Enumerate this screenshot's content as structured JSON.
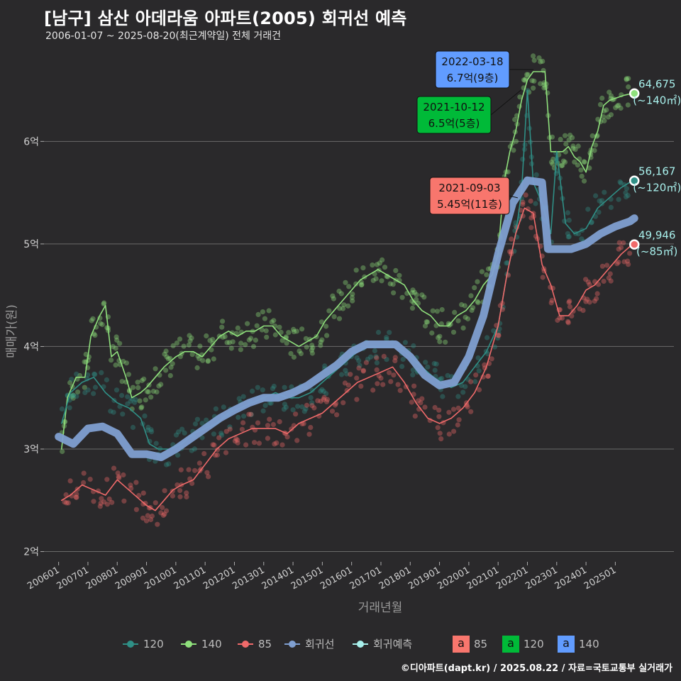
{
  "title": "[남구] 삼산 아데라움 아파트(2005) 회귀선 예측",
  "subtitle": "2006-01-07 ~ 2025-08-20(최근계약일) 전체 거래건",
  "caption": "©디아파트(dapt.kr) / 2025.08.22 / 자료=국토교통부 실거래가",
  "colors": {
    "background": "#2a292b",
    "grid": "#6a6a6a",
    "s120": "#2f8f86",
    "s140": "#8fe07c",
    "s85": "#f06a6a",
    "regression": "#7f9fd1",
    "forecast": "#a8f0ec",
    "box85": "#f8766d",
    "box120": "#00ba38",
    "box140": "#619cff"
  },
  "chart_data": {
    "type": "line",
    "xlabel": "거래년월",
    "ylabel": "매매가(원)",
    "x_ticks": [
      "200601",
      "200701",
      "200801",
      "200901",
      "201001",
      "201101",
      "201201",
      "201301",
      "201401",
      "201501",
      "201601",
      "201701",
      "201801",
      "201901",
      "202001",
      "202101",
      "202201",
      "202301",
      "202401",
      "202501"
    ],
    "y_ticks": [
      {
        "value": 2,
        "label": "2억"
      },
      {
        "value": 3,
        "label": "3억"
      },
      {
        "value": 4,
        "label": "4억"
      },
      {
        "value": 5,
        "label": "5억"
      },
      {
        "value": 6,
        "label": "6억"
      }
    ],
    "x_range": [
      2005.5,
      2027.0
    ],
    "y_range": [
      1.9,
      6.95
    ],
    "unit": "억",
    "series": [
      {
        "name": "140",
        "color_key": "s140",
        "x": [
          2006.1,
          2006.3,
          2006.6,
          2006.9,
          2007.1,
          2007.4,
          2007.6,
          2007.8,
          2008.0,
          2008.3,
          2008.5,
          2008.8,
          2009.0,
          2009.3,
          2009.6,
          2009.8,
          2010.0,
          2010.3,
          2010.6,
          2010.9,
          2011.2,
          2011.5,
          2011.8,
          2012.1,
          2012.4,
          2012.7,
          2013.0,
          2013.3,
          2013.6,
          2013.9,
          2014.2,
          2014.5,
          2014.8,
          2015.1,
          2015.4,
          2015.7,
          2016.0,
          2016.3,
          2016.6,
          2016.9,
          2017.2,
          2017.5,
          2017.8,
          2018.1,
          2018.4,
          2018.7,
          2019.0,
          2019.3,
          2019.6,
          2019.9,
          2020.2,
          2020.5,
          2020.8,
          2021.0,
          2021.2,
          2021.4,
          2021.6,
          2021.8,
          2022.0,
          2022.2,
          2022.5,
          2022.6,
          2022.8,
          2023.0,
          2023.2,
          2023.4,
          2023.6,
          2023.8,
          2024.0,
          2024.2,
          2024.4,
          2024.6,
          2024.8,
          2025.0,
          2025.3,
          2025.6
        ],
        "y": [
          3.0,
          3.5,
          3.7,
          3.7,
          4.1,
          4.3,
          4.4,
          3.9,
          3.95,
          3.7,
          3.5,
          3.55,
          3.6,
          3.7,
          3.8,
          3.85,
          3.9,
          3.95,
          3.95,
          3.9,
          4.0,
          4.1,
          4.15,
          4.1,
          4.15,
          4.15,
          4.2,
          4.2,
          4.1,
          4.05,
          4.0,
          4.05,
          4.1,
          4.25,
          4.35,
          4.45,
          4.55,
          4.65,
          4.7,
          4.75,
          4.7,
          4.65,
          4.6,
          4.45,
          4.35,
          4.3,
          4.2,
          4.2,
          4.3,
          4.35,
          4.45,
          4.6,
          4.7,
          4.9,
          5.6,
          5.9,
          6.1,
          6.4,
          6.6,
          6.68,
          6.68,
          6.68,
          5.9,
          5.9,
          5.9,
          5.95,
          5.85,
          5.8,
          5.7,
          5.95,
          6.1,
          6.35,
          6.4,
          6.42,
          6.45,
          6.47
        ]
      },
      {
        "name": "120",
        "color_key": "s120",
        "x": [
          2006.1,
          2006.4,
          2006.8,
          2007.2,
          2007.6,
          2008.0,
          2008.4,
          2008.8,
          2009.1,
          2009.4,
          2009.8,
          2010.2,
          2010.6,
          2011.0,
          2011.4,
          2011.8,
          2012.2,
          2012.6,
          2013.0,
          2013.4,
          2013.8,
          2014.2,
          2014.6,
          2015.0,
          2015.4,
          2015.8,
          2016.2,
          2016.6,
          2017.0,
          2017.4,
          2017.8,
          2018.2,
          2018.6,
          2019.0,
          2019.4,
          2019.8,
          2020.2,
          2020.6,
          2021.0,
          2021.3,
          2021.6,
          2021.8,
          2022.0,
          2022.2,
          2022.5,
          2022.8,
          2023.0,
          2023.3,
          2023.6,
          2024.0,
          2024.4,
          2024.8,
          2025.2,
          2025.6
        ],
        "y": [
          3.25,
          3.55,
          3.65,
          3.7,
          3.55,
          3.45,
          3.4,
          3.3,
          3.05,
          3.0,
          3.0,
          3.05,
          3.15,
          3.2,
          3.25,
          3.35,
          3.4,
          3.45,
          3.5,
          3.55,
          3.5,
          3.5,
          3.55,
          3.65,
          3.75,
          3.85,
          3.95,
          4.0,
          4.0,
          4.0,
          3.95,
          3.85,
          3.75,
          3.65,
          3.6,
          3.65,
          3.8,
          3.95,
          4.2,
          4.7,
          5.1,
          5.5,
          6.5,
          5.6,
          5.4,
          5.1,
          5.9,
          5.2,
          5.1,
          5.15,
          5.35,
          5.45,
          5.55,
          5.62
        ]
      },
      {
        "name": "85",
        "color_key": "s85",
        "x": [
          2006.1,
          2006.4,
          2006.8,
          2007.2,
          2007.6,
          2008.0,
          2008.4,
          2008.8,
          2009.0,
          2009.3,
          2009.6,
          2009.9,
          2010.2,
          2010.6,
          2011.0,
          2011.4,
          2011.8,
          2012.2,
          2012.6,
          2013.0,
          2013.4,
          2013.8,
          2014.2,
          2014.6,
          2015.0,
          2015.4,
          2015.8,
          2016.2,
          2016.6,
          2017.0,
          2017.4,
          2017.8,
          2018.2,
          2018.6,
          2019.0,
          2019.4,
          2019.8,
          2020.2,
          2020.6,
          2021.0,
          2021.3,
          2021.6,
          2021.9,
          2022.2,
          2022.5,
          2022.8,
          2023.1,
          2023.4,
          2023.7,
          2024.0,
          2024.3,
          2024.6,
          2024.9,
          2025.2,
          2025.6
        ],
        "y": [
          2.5,
          2.55,
          2.65,
          2.6,
          2.55,
          2.7,
          2.6,
          2.5,
          2.45,
          2.4,
          2.5,
          2.6,
          2.65,
          2.7,
          2.85,
          3.0,
          3.1,
          3.15,
          3.2,
          3.2,
          3.2,
          3.15,
          3.25,
          3.3,
          3.35,
          3.45,
          3.55,
          3.65,
          3.7,
          3.75,
          3.8,
          3.65,
          3.45,
          3.3,
          3.25,
          3.3,
          3.4,
          3.55,
          3.8,
          4.2,
          4.7,
          5.1,
          5.35,
          5.3,
          4.8,
          4.6,
          4.3,
          4.3,
          4.4,
          4.55,
          4.6,
          4.7,
          4.8,
          4.9,
          5.0
        ]
      },
      {
        "name": "회귀선",
        "color_key": "regression",
        "x": [
          2006.0,
          2006.5,
          2007.0,
          2007.5,
          2008.0,
          2008.5,
          2009.0,
          2009.5,
          2010.0,
          2010.5,
          2011.0,
          2011.5,
          2012.0,
          2012.5,
          2013.0,
          2013.5,
          2014.0,
          2014.5,
          2015.0,
          2015.5,
          2016.0,
          2016.5,
          2017.0,
          2017.5,
          2018.0,
          2018.5,
          2019.0,
          2019.5,
          2020.0,
          2020.5,
          2021.0,
          2021.5,
          2022.0,
          2022.5,
          2022.7,
          2023.0,
          2023.5,
          2024.0,
          2024.5,
          2025.0,
          2025.5,
          2025.65
        ],
        "y": [
          3.12,
          3.05,
          3.2,
          3.22,
          3.15,
          2.95,
          2.95,
          2.92,
          3.0,
          3.1,
          3.2,
          3.3,
          3.38,
          3.45,
          3.5,
          3.5,
          3.55,
          3.62,
          3.72,
          3.82,
          3.95,
          4.02,
          4.02,
          4.02,
          3.9,
          3.72,
          3.62,
          3.65,
          3.9,
          4.3,
          4.9,
          5.4,
          5.62,
          5.6,
          4.95,
          4.95,
          4.95,
          5.0,
          5.1,
          5.17,
          5.22,
          5.25
        ]
      }
    ],
    "forecast_points": [
      {
        "name": "140",
        "x": 2025.65,
        "y": 6.4675,
        "value_label": "64,675",
        "area_label": "(~140㎡)"
      },
      {
        "name": "120",
        "x": 2025.65,
        "y": 5.6167,
        "value_label": "56,167",
        "area_label": "(~120㎡)"
      },
      {
        "name": "85",
        "x": 2025.65,
        "y": 4.9946,
        "value_label": "49,946",
        "area_label": "(~85㎡)"
      }
    ],
    "annotations": [
      {
        "date": "2022-03-18",
        "price": "6.7억(9층)",
        "area": "140",
        "x": 2022.21,
        "y": 6.7
      },
      {
        "date": "2021-10-12",
        "price": "6.5억(5층)",
        "area": "120",
        "x": 2021.78,
        "y": 6.5
      },
      {
        "date": "2021-09-03",
        "price": "5.45억(11층)",
        "area": "85",
        "x": 2021.67,
        "y": 5.45
      }
    ],
    "grid": true,
    "legend_position": "bottom"
  },
  "legend": {
    "lines": [
      {
        "label": "120",
        "color_key": "s120"
      },
      {
        "label": "140",
        "color_key": "s140"
      },
      {
        "label": "85",
        "color_key": "s85"
      },
      {
        "label": "회귀선",
        "color_key": "regression"
      },
      {
        "label": "회귀예측",
        "color_key": "forecast"
      }
    ],
    "boxes": [
      {
        "glyph": "a",
        "label": "85",
        "color_key": "box85"
      },
      {
        "glyph": "a",
        "label": "120",
        "color_key": "box120"
      },
      {
        "glyph": "a",
        "label": "140",
        "color_key": "box140"
      }
    ]
  }
}
